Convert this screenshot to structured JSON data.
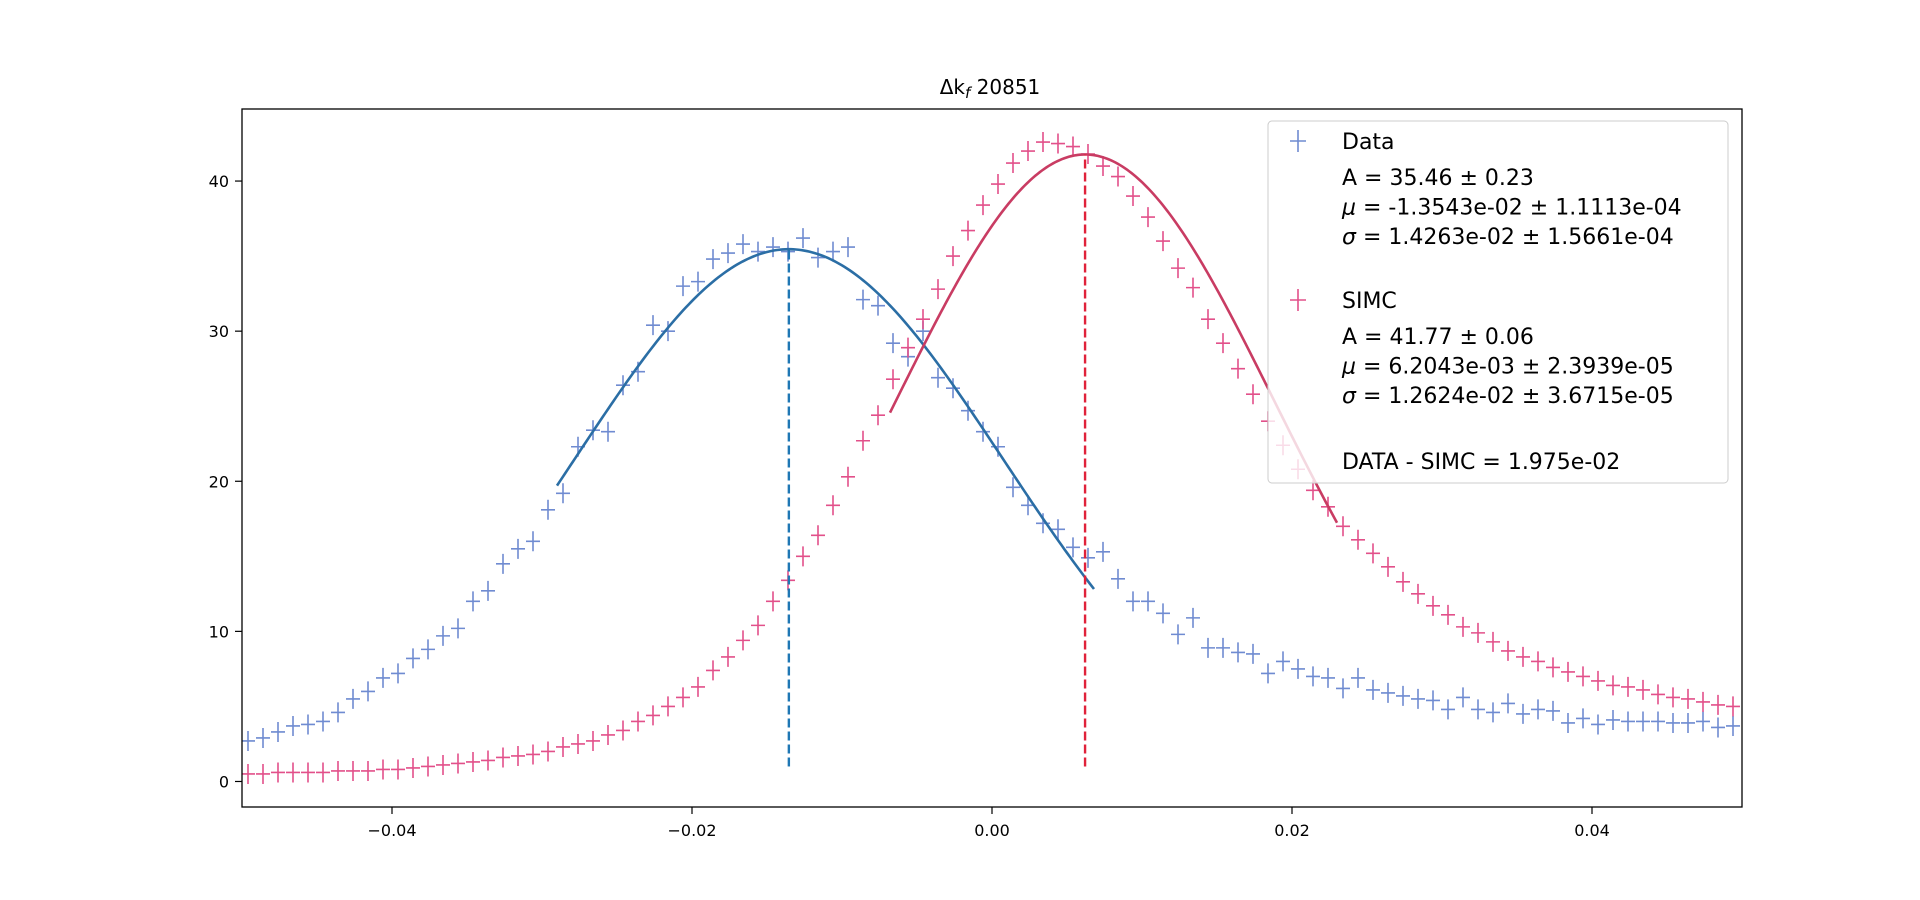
{
  "chart_data": {
    "type": "scatter",
    "title": "Δk",
    "title_sub": "f",
    "title_suffix": " 20851",
    "xlim": [
      -0.05,
      0.05
    ],
    "ylim": [
      -1.7,
      44.8
    ],
    "xticks": [
      -0.04,
      -0.02,
      0.0,
      0.02,
      0.04
    ],
    "xtick_labels": [
      "−0.04",
      "−0.02",
      "0.00",
      "0.02",
      "0.04"
    ],
    "yticks": [
      0,
      10,
      20,
      30,
      40
    ],
    "ytick_labels": [
      "0",
      "10",
      "20",
      "30",
      "40"
    ],
    "grid": false,
    "legend_position": "top-right",
    "colors": {
      "data_points": "#6f8bd1",
      "simc_points": "#e2508a",
      "data_fit": "#2b6ea5",
      "simc_fit": "#c93c63",
      "data_mean_line": "#1f77b4",
      "simc_mean_line": "#e0223a"
    },
    "series": [
      {
        "name": "Data",
        "marker": "+",
        "x": [
          -0.0496,
          -0.0486,
          -0.0476,
          -0.0466,
          -0.0456,
          -0.0446,
          -0.0436,
          -0.0426,
          -0.0416,
          -0.0406,
          -0.0396,
          -0.0386,
          -0.0376,
          -0.0366,
          -0.0356,
          -0.0346,
          -0.0336,
          -0.0326,
          -0.0316,
          -0.0306,
          -0.0296,
          -0.0286,
          -0.0276,
          -0.0266,
          -0.0256,
          -0.0246,
          -0.0236,
          -0.0226,
          -0.0216,
          -0.0206,
          -0.0196,
          -0.0186,
          -0.0176,
          -0.0166,
          -0.0156,
          -0.0146,
          -0.0136,
          -0.0126,
          -0.0116,
          -0.0106,
          -0.0096,
          -0.0086,
          -0.0076,
          -0.0066,
          -0.0056,
          -0.0046,
          -0.0036,
          -0.0026,
          -0.0016,
          -0.0006,
          0.0004,
          0.0014,
          0.0024,
          0.0034,
          0.0044,
          0.0054,
          0.0064,
          0.0074,
          0.0084,
          0.0094,
          0.0104,
          0.0114,
          0.0124,
          0.0134,
          0.0144,
          0.0154,
          0.0164,
          0.0174,
          0.0184,
          0.0194,
          0.0204,
          0.0214,
          0.0224,
          0.0234,
          0.0244,
          0.0254,
          0.0264,
          0.0274,
          0.0284,
          0.0294,
          0.0304,
          0.0314,
          0.0324,
          0.0334,
          0.0344,
          0.0354,
          0.0364,
          0.0374,
          0.0384,
          0.0394,
          0.0404,
          0.0414,
          0.0424,
          0.0434,
          0.0444,
          0.0454,
          0.0464,
          0.0474,
          0.0484,
          0.0494
        ],
        "y": [
          2.7,
          2.9,
          3.3,
          3.7,
          3.8,
          4.0,
          4.6,
          5.5,
          6.0,
          6.9,
          7.2,
          8.2,
          8.8,
          9.7,
          10.2,
          12.0,
          12.7,
          14.5,
          15.5,
          16.0,
          18.1,
          19.2,
          22.3,
          23.4,
          23.3,
          26.4,
          27.3,
          30.4,
          30.0,
          33.0,
          33.3,
          34.8,
          35.2,
          35.8,
          35.3,
          35.6,
          35.3,
          36.2,
          34.9,
          35.3,
          35.6,
          32.1,
          31.7,
          29.2,
          28.3,
          30.0,
          26.9,
          26.2,
          24.7,
          23.3,
          22.3,
          19.6,
          18.4,
          17.2,
          16.8,
          15.6,
          14.9,
          15.3,
          13.5,
          12.0,
          12.0,
          11.2,
          9.8,
          10.9,
          8.9,
          8.9,
          8.6,
          8.5,
          7.2,
          8.0,
          7.5,
          7.0,
          6.9,
          6.2,
          6.9,
          6.1,
          5.9,
          5.7,
          5.5,
          5.4,
          4.8,
          5.6,
          4.8,
          4.6,
          5.2,
          4.5,
          4.8,
          4.7,
          3.9,
          4.2,
          3.8,
          4.1,
          4.0,
          4.0,
          4.0,
          3.9,
          3.9,
          4.0,
          3.6,
          3.7
        ]
      },
      {
        "name": "SIMC",
        "marker": "+",
        "x": [
          -0.0496,
          -0.0486,
          -0.0476,
          -0.0466,
          -0.0456,
          -0.0446,
          -0.0436,
          -0.0426,
          -0.0416,
          -0.0406,
          -0.0396,
          -0.0386,
          -0.0376,
          -0.0366,
          -0.0356,
          -0.0346,
          -0.0336,
          -0.0326,
          -0.0316,
          -0.0306,
          -0.0296,
          -0.0286,
          -0.0276,
          -0.0266,
          -0.0256,
          -0.0246,
          -0.0236,
          -0.0226,
          -0.0216,
          -0.0206,
          -0.0196,
          -0.0186,
          -0.0176,
          -0.0166,
          -0.0156,
          -0.0146,
          -0.0136,
          -0.0126,
          -0.0116,
          -0.0106,
          -0.0096,
          -0.0086,
          -0.0076,
          -0.0066,
          -0.0056,
          -0.0046,
          -0.0036,
          -0.0026,
          -0.0016,
          -0.0006,
          0.0004,
          0.0014,
          0.0024,
          0.0034,
          0.0044,
          0.0054,
          0.0064,
          0.0074,
          0.0084,
          0.0094,
          0.0104,
          0.0114,
          0.0124,
          0.0134,
          0.0144,
          0.0154,
          0.0164,
          0.0174,
          0.0184,
          0.0194,
          0.0204,
          0.0214,
          0.0224,
          0.0234,
          0.0244,
          0.0254,
          0.0264,
          0.0274,
          0.0284,
          0.0294,
          0.0304,
          0.0314,
          0.0324,
          0.0334,
          0.0344,
          0.0354,
          0.0364,
          0.0374,
          0.0384,
          0.0394,
          0.0404,
          0.0414,
          0.0424,
          0.0434,
          0.0444,
          0.0454,
          0.0464,
          0.0474,
          0.0484,
          0.0494
        ],
        "y": [
          0.5,
          0.5,
          0.6,
          0.6,
          0.6,
          0.6,
          0.7,
          0.7,
          0.7,
          0.8,
          0.8,
          0.9,
          1.0,
          1.1,
          1.2,
          1.3,
          1.4,
          1.6,
          1.7,
          1.8,
          2.0,
          2.3,
          2.5,
          2.7,
          3.1,
          3.4,
          4.0,
          4.4,
          5.0,
          5.6,
          6.3,
          7.4,
          8.3,
          9.4,
          10.4,
          12.0,
          13.4,
          15.0,
          16.4,
          18.4,
          20.3,
          22.7,
          24.4,
          26.8,
          28.9,
          30.8,
          32.8,
          35.0,
          36.7,
          38.4,
          39.8,
          41.2,
          42.0,
          42.6,
          42.5,
          42.3,
          41.8,
          41.0,
          40.3,
          39.0,
          37.6,
          36.0,
          34.2,
          32.9,
          30.8,
          29.2,
          27.5,
          25.8,
          24.0,
          22.4,
          20.8,
          19.4,
          18.3,
          17.0,
          16.1,
          15.2,
          14.3,
          13.3,
          12.5,
          11.7,
          11.1,
          10.3,
          9.9,
          9.3,
          8.7,
          8.3,
          8.0,
          7.6,
          7.3,
          7.0,
          6.7,
          6.4,
          6.3,
          6.1,
          5.8,
          5.6,
          5.5,
          5.3,
          5.1,
          5.0
        ]
      }
    ],
    "fits": [
      {
        "series": "Data",
        "A": 35.46,
        "mu": -0.013543,
        "sigma": 0.014263,
        "x_range": [
          -0.029,
          0.0068
        ]
      },
      {
        "series": "SIMC",
        "A": 41.77,
        "mu": 0.0062043,
        "sigma": 0.012624,
        "x_range": [
          -0.0068,
          0.023
        ]
      }
    ],
    "mean_lines": [
      {
        "series": "Data",
        "x": -0.013543,
        "y_range": [
          1.0,
          35.46
        ]
      },
      {
        "series": "SIMC",
        "x": 0.0062043,
        "y_range": [
          1.0,
          41.77
        ]
      }
    ],
    "legend": {
      "entries": [
        {
          "label": "Data",
          "lines": [
            {
              "sym": "A",
              "text": " = 35.46 ± 0.23"
            },
            {
              "sym": "μ",
              "text": " = -1.3543e-02 ± 1.1113e-04"
            },
            {
              "sym": "σ",
              "text": " = 1.4263e-02 ± 1.5661e-04"
            }
          ]
        },
        {
          "label": "SIMC",
          "lines": [
            {
              "sym": "A",
              "text": " = 41.77 ± 0.06"
            },
            {
              "sym": "μ",
              "text": " = 6.2043e-03 ± 2.3939e-05"
            },
            {
              "sym": "σ",
              "text": " = 1.2624e-02 ± 3.6715e-05"
            }
          ]
        }
      ],
      "difference": "DATA - SIMC = 1.975e-02"
    }
  }
}
